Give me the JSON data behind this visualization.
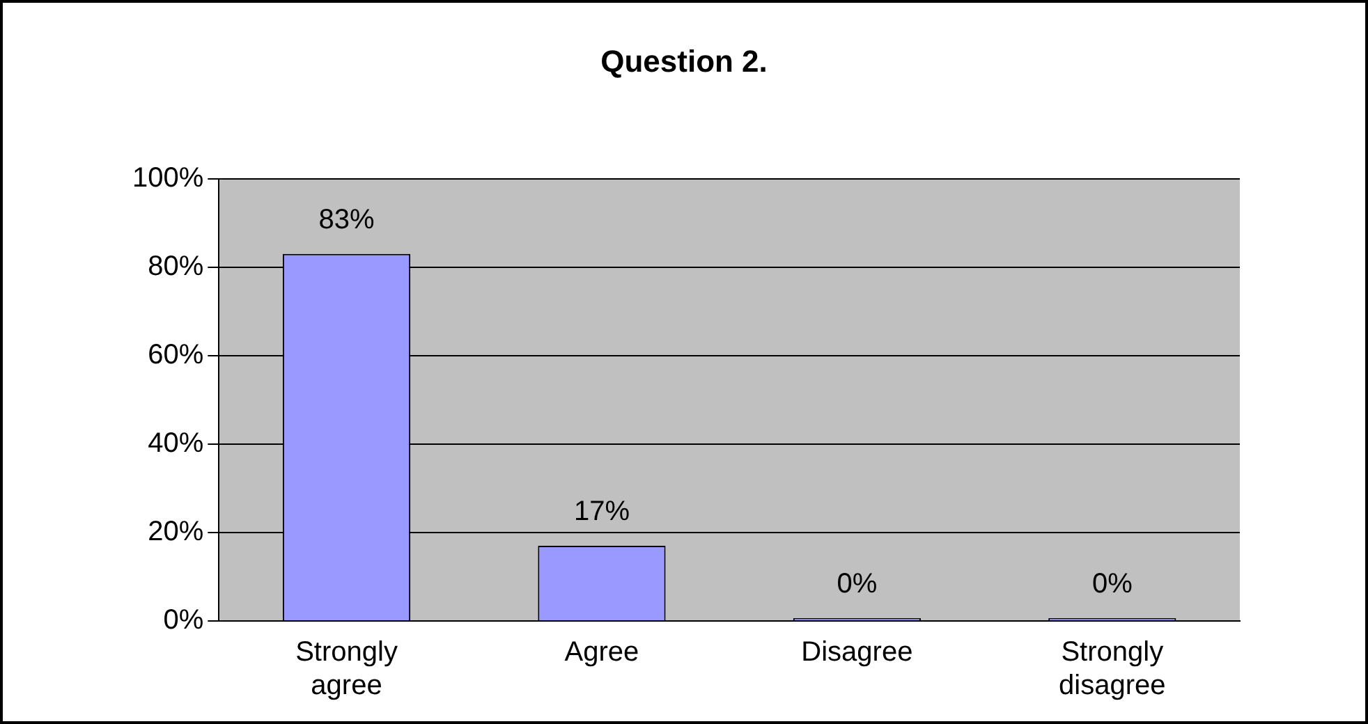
{
  "chart_data": {
    "type": "bar",
    "title": "Question 2.",
    "categories": [
      "Strongly agree",
      "Agree",
      "Disagree",
      "Strongly disagree"
    ],
    "values": [
      83,
      17,
      0,
      0
    ],
    "color": "#9999ff",
    "value_labels": [
      "83%",
      "17%",
      "0%",
      "0%"
    ],
    "ylim": [
      0,
      100
    ],
    "yticks": [
      {
        "value": 0,
        "label": "0%"
      },
      {
        "value": 20,
        "label": "20%"
      },
      {
        "value": 40,
        "label": "40%"
      },
      {
        "value": 60,
        "label": "60%"
      },
      {
        "value": 80,
        "label": "80%"
      },
      {
        "value": 100,
        "label": "100%"
      }
    ],
    "grid": "y",
    "legend": false
  }
}
